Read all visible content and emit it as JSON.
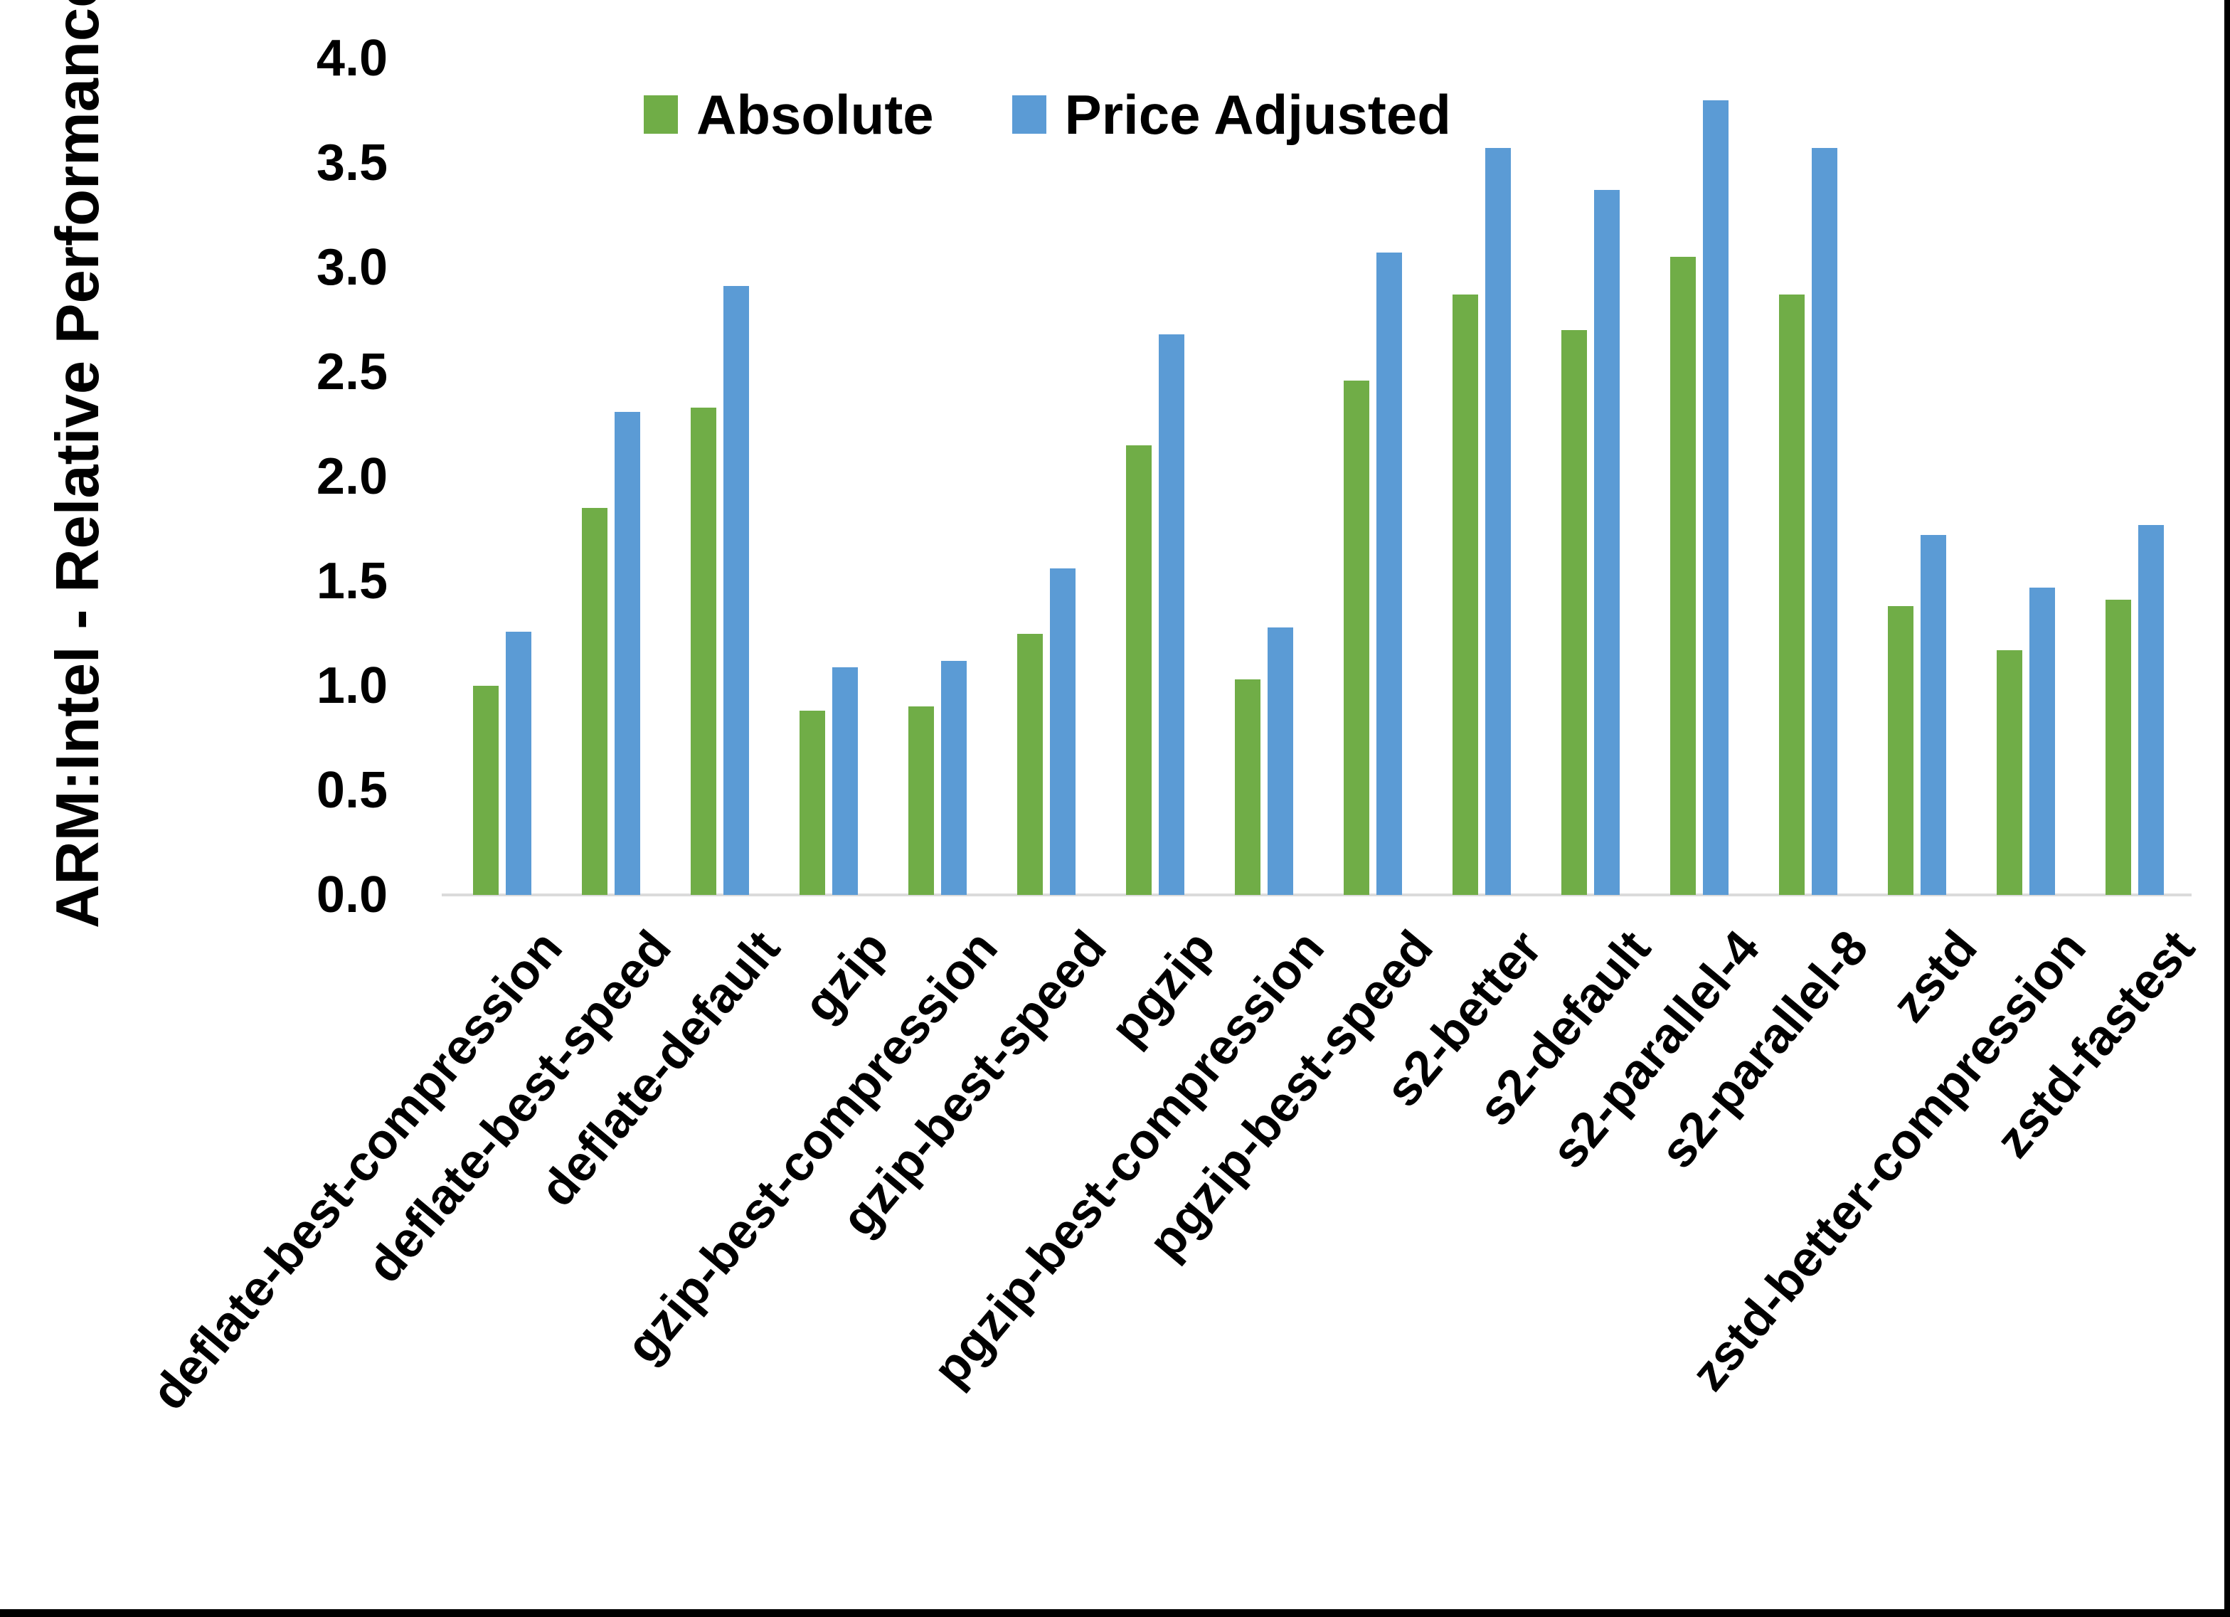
{
  "figure": {
    "background": "#FFFFFF",
    "frame_border_color": "#000000"
  },
  "chart_data": {
    "type": "bar",
    "title": "",
    "xlabel": "",
    "ylabel": "ARM:Intel - Relative Performance",
    "ylim": [
      0,
      4
    ],
    "ytick_step": 0.5,
    "yticks": [
      "0.0",
      "0.5",
      "1.0",
      "1.5",
      "2.0",
      "2.5",
      "3.0",
      "3.5",
      "4.0"
    ],
    "grid": false,
    "legend_position": "top-center",
    "axis_line_color": "#DBDBDB",
    "categories": [
      "deflate-best-compression",
      "deflate-best-speed",
      "deflate-default",
      "gzip",
      "gzip-best-compression",
      "gzip-best-speed",
      "pgzip",
      "pgzip-best-compression",
      "pgzip-best-speed",
      "s2-better",
      "s2-default",
      "s2-parallel-4",
      "s2-parallel-8",
      "zstd",
      "zstd-better-compression",
      "zstd-fastest"
    ],
    "series": [
      {
        "name": "Absolute",
        "color": "#70AD47",
        "values": [
          1.0,
          1.85,
          2.33,
          0.88,
          0.9,
          1.25,
          2.15,
          1.03,
          2.46,
          2.87,
          2.7,
          3.05,
          2.87,
          1.38,
          1.17,
          1.41
        ]
      },
      {
        "name": "Price Adjusted",
        "color": "#5B9BD5",
        "values": [
          1.26,
          2.31,
          2.91,
          1.09,
          1.12,
          1.56,
          2.68,
          1.28,
          3.07,
          3.57,
          3.37,
          3.8,
          3.57,
          1.72,
          1.47,
          1.77
        ]
      }
    ]
  }
}
